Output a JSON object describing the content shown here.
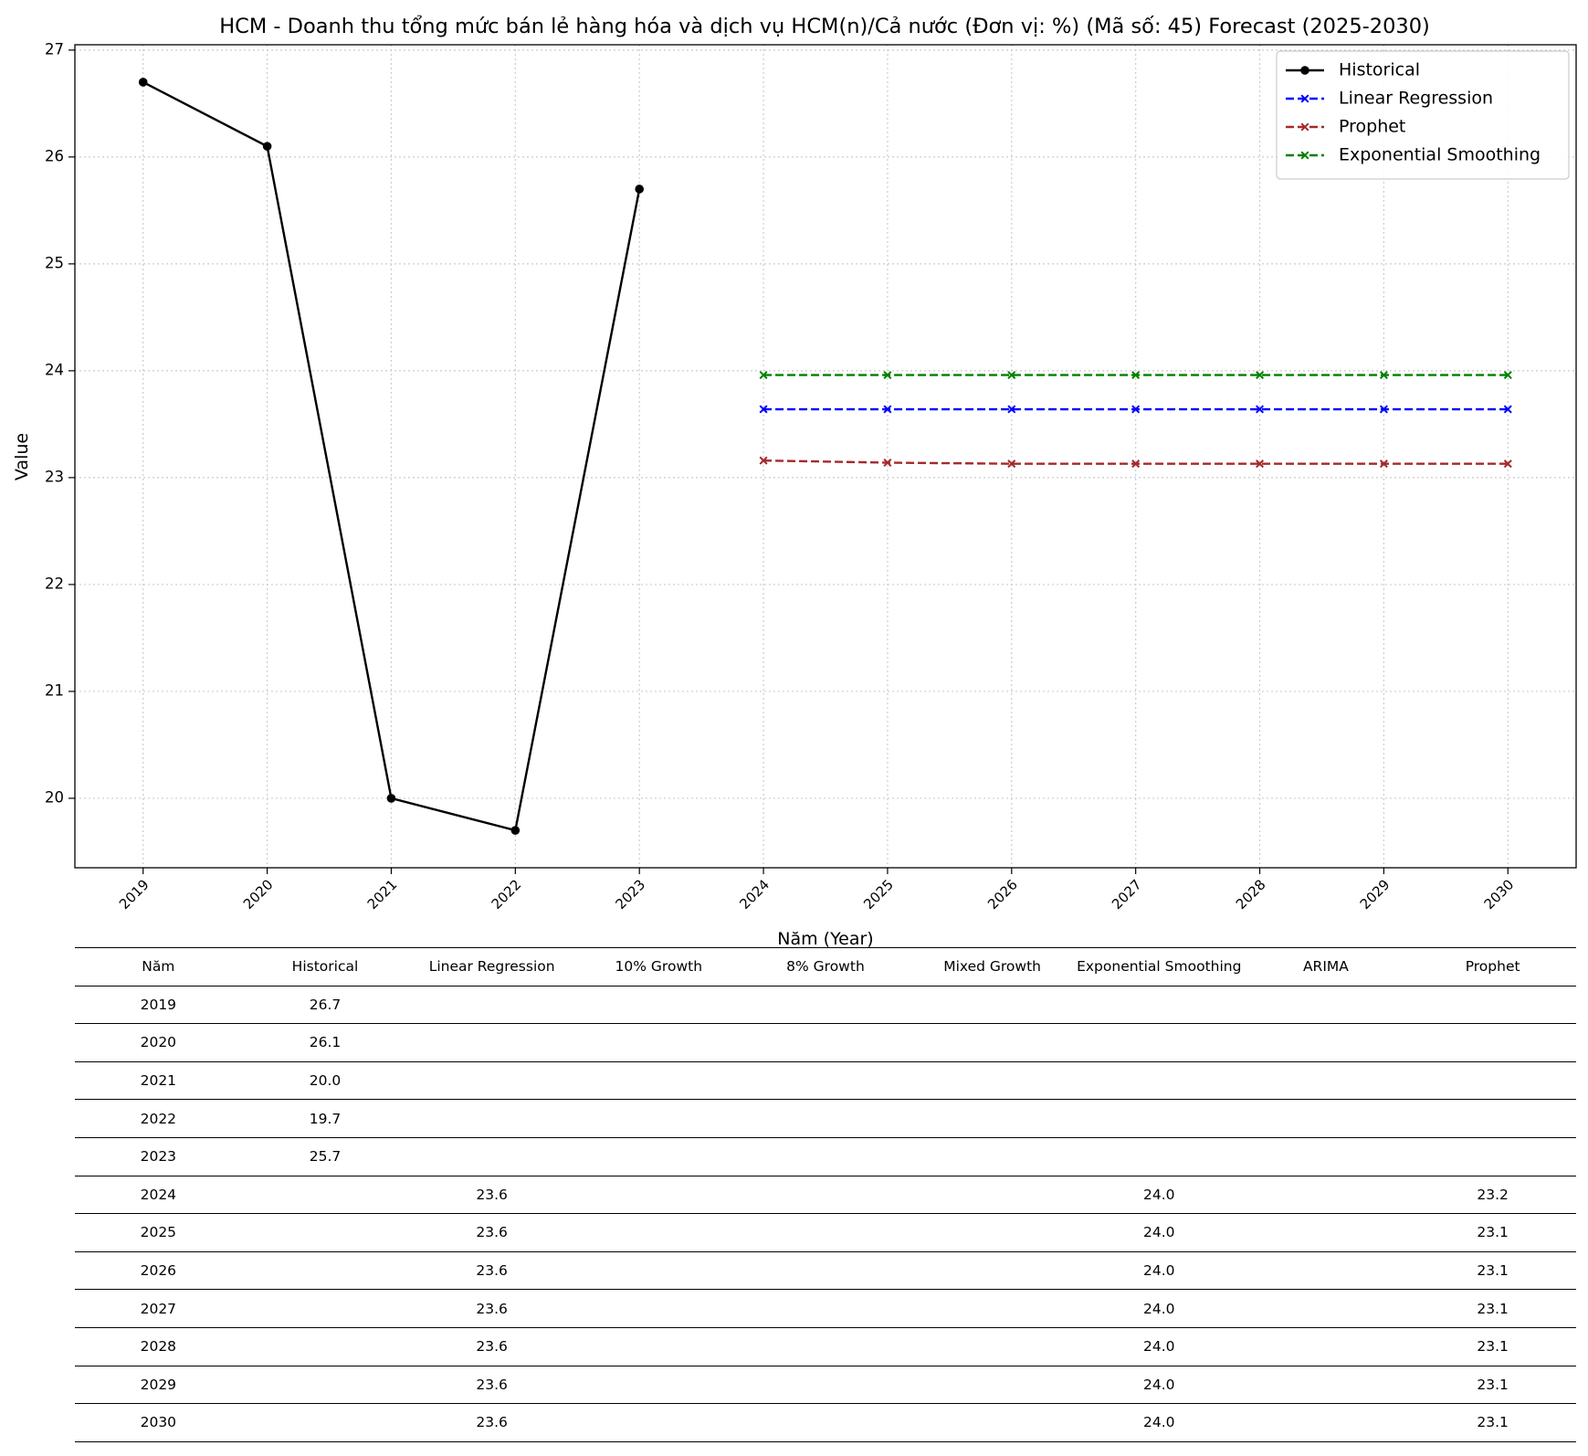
{
  "chart_data": {
    "type": "line",
    "title": "HCM - Doanh thu tổng mức bán lẻ hàng hóa và dịch vụ HCM(n)/Cả nước (Đơn vị: %) (Mã số: 45) Forecast (2025-2030)",
    "xlabel": "Năm (Year)",
    "ylabel": "Value",
    "x": [
      2019,
      2020,
      2021,
      2022,
      2023,
      2024,
      2025,
      2026,
      2027,
      2028,
      2029,
      2030
    ],
    "xlim": [
      2018.45,
      2030.55
    ],
    "ylim": [
      19.35,
      27.05
    ],
    "yticks": [
      20,
      21,
      22,
      23,
      24,
      25,
      26,
      27
    ],
    "grid": true,
    "legend_position": "upper right",
    "series": [
      {
        "name": "Historical",
        "color": "#000000",
        "style": "solid",
        "marker": "circle",
        "x": [
          2019,
          2020,
          2021,
          2022,
          2023
        ],
        "values": [
          26.7,
          26.1,
          20.0,
          19.7,
          25.7
        ]
      },
      {
        "name": "Linear Regression",
        "color": "#0000ff",
        "style": "dashed",
        "marker": "x",
        "x": [
          2024,
          2025,
          2026,
          2027,
          2028,
          2029,
          2030
        ],
        "values": [
          23.64,
          23.64,
          23.64,
          23.64,
          23.64,
          23.64,
          23.64
        ]
      },
      {
        "name": "Prophet",
        "color": "#a52a2a",
        "style": "dashed",
        "marker": "x",
        "x": [
          2024,
          2025,
          2026,
          2027,
          2028,
          2029,
          2030
        ],
        "values": [
          23.16,
          23.14,
          23.13,
          23.13,
          23.13,
          23.13,
          23.13
        ]
      },
      {
        "name": "Exponential Smoothing",
        "color": "#008000",
        "style": "dashed",
        "marker": "x",
        "x": [
          2024,
          2025,
          2026,
          2027,
          2028,
          2029,
          2030
        ],
        "values": [
          23.96,
          23.96,
          23.96,
          23.96,
          23.96,
          23.96,
          23.96
        ]
      }
    ]
  },
  "table": {
    "headers": [
      "Năm",
      "Historical",
      "Linear Regression",
      "10% Growth",
      "8% Growth",
      "Mixed Growth",
      "Exponential Smoothing",
      "ARIMA",
      "Prophet"
    ],
    "rows": [
      [
        "2019",
        "26.7",
        "",
        "",
        "",
        "",
        "",
        "",
        ""
      ],
      [
        "2020",
        "26.1",
        "",
        "",
        "",
        "",
        "",
        "",
        ""
      ],
      [
        "2021",
        "20.0",
        "",
        "",
        "",
        "",
        "",
        "",
        ""
      ],
      [
        "2022",
        "19.7",
        "",
        "",
        "",
        "",
        "",
        "",
        ""
      ],
      [
        "2023",
        "25.7",
        "",
        "",
        "",
        "",
        "",
        "",
        ""
      ],
      [
        "2024",
        "",
        "23.6",
        "",
        "",
        "",
        "24.0",
        "",
        "23.2"
      ],
      [
        "2025",
        "",
        "23.6",
        "",
        "",
        "",
        "24.0",
        "",
        "23.1"
      ],
      [
        "2026",
        "",
        "23.6",
        "",
        "",
        "",
        "24.0",
        "",
        "23.1"
      ],
      [
        "2027",
        "",
        "23.6",
        "",
        "",
        "",
        "24.0",
        "",
        "23.1"
      ],
      [
        "2028",
        "",
        "23.6",
        "",
        "",
        "",
        "24.0",
        "",
        "23.1"
      ],
      [
        "2029",
        "",
        "23.6",
        "",
        "",
        "",
        "24.0",
        "",
        "23.1"
      ],
      [
        "2030",
        "",
        "23.6",
        "",
        "",
        "",
        "24.0",
        "",
        "23.1"
      ]
    ]
  }
}
